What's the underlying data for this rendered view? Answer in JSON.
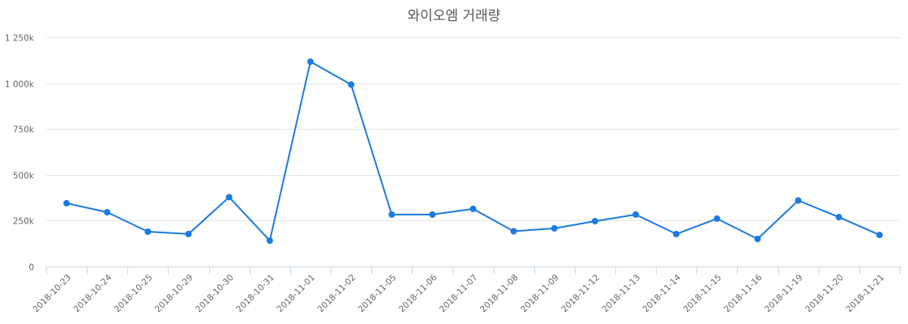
{
  "chart_data": {
    "type": "line",
    "title": "와이오엠 거래량",
    "xlabel": "",
    "ylabel": "",
    "ylim": [
      0,
      1250000
    ],
    "grid": true,
    "legend": "none",
    "y_ticks": [
      0,
      250000,
      500000,
      750000,
      1000000,
      1250000
    ],
    "y_tick_labels": [
      "0",
      "250k",
      "500k",
      "750k",
      "1 000k",
      "1 250k"
    ],
    "categories": [
      "2018-10-23",
      "2018-10-24",
      "2018-10-25",
      "2018-10-29",
      "2018-10-30",
      "2018-10-31",
      "2018-11-01",
      "2018-11-02",
      "2018-11-05",
      "2018-11-06",
      "2018-11-07",
      "2018-11-08",
      "2018-11-09",
      "2018-11-12",
      "2018-11-13",
      "2018-11-14",
      "2018-11-15",
      "2018-11-16",
      "2018-11-19",
      "2018-11-20",
      "2018-11-21"
    ],
    "series": [
      {
        "name": "거래량",
        "color": "#1a7be0",
        "values": [
          345000,
          296000,
          190000,
          177000,
          378000,
          141000,
          1117000,
          992000,
          283000,
          283000,
          314000,
          192000,
          208000,
          247000,
          283000,
          177000,
          261000,
          150000,
          360000,
          269000,
          172000
        ]
      }
    ]
  },
  "style": {
    "line_color": "#1a7be0",
    "grid_color": "#e6e6e6",
    "axis_color": "#ccd6eb",
    "label_color": "#666666",
    "title_color": "#555555"
  }
}
